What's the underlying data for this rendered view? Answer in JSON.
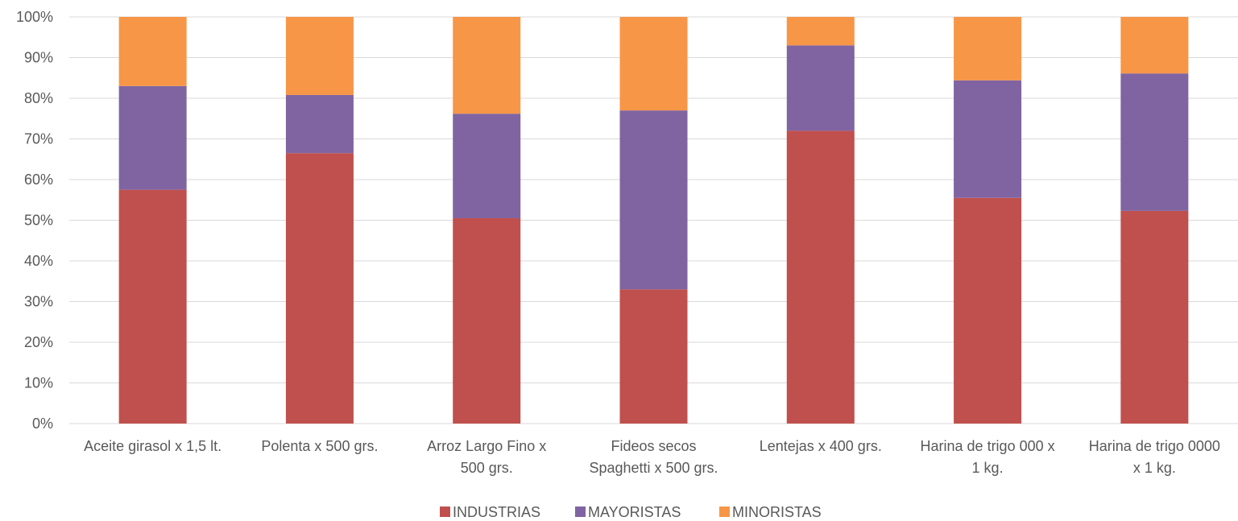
{
  "chart_data": {
    "type": "bar",
    "stacked": true,
    "percent": true,
    "categories": [
      [
        "Aceite girasol x 1,5 lt."
      ],
      [
        "Polenta x 500 grs."
      ],
      [
        "Arroz Largo Fino x",
        "500 grs."
      ],
      [
        "Fideos secos",
        "Spaghetti x 500 grs."
      ],
      [
        "Lentejas x 400 grs."
      ],
      [
        "Harina de trigo 000 x",
        "1 kg."
      ],
      [
        "Harina de trigo 0000",
        "x 1 kg."
      ]
    ],
    "series": [
      {
        "name": "INDUSTRIAS",
        "color": "#C0504D",
        "values": [
          57.5,
          66.5,
          50.5,
          33.0,
          72.0,
          55.5,
          52.3
        ]
      },
      {
        "name": "MAYORISTAS",
        "color": "#8064A2",
        "values": [
          25.5,
          14.3,
          25.7,
          44.0,
          21.0,
          28.9,
          33.8
        ]
      },
      {
        "name": "MINORISTAS",
        "color": "#F79646",
        "values": [
          17.0,
          19.2,
          23.8,
          23.0,
          7.0,
          15.6,
          13.9
        ]
      }
    ],
    "y_ticks": [
      "0%",
      "10%",
      "20%",
      "30%",
      "40%",
      "50%",
      "60%",
      "70%",
      "80%",
      "90%",
      "100%"
    ],
    "ylim": [
      0,
      100
    ],
    "grid": true,
    "legend_position": "bottom"
  }
}
